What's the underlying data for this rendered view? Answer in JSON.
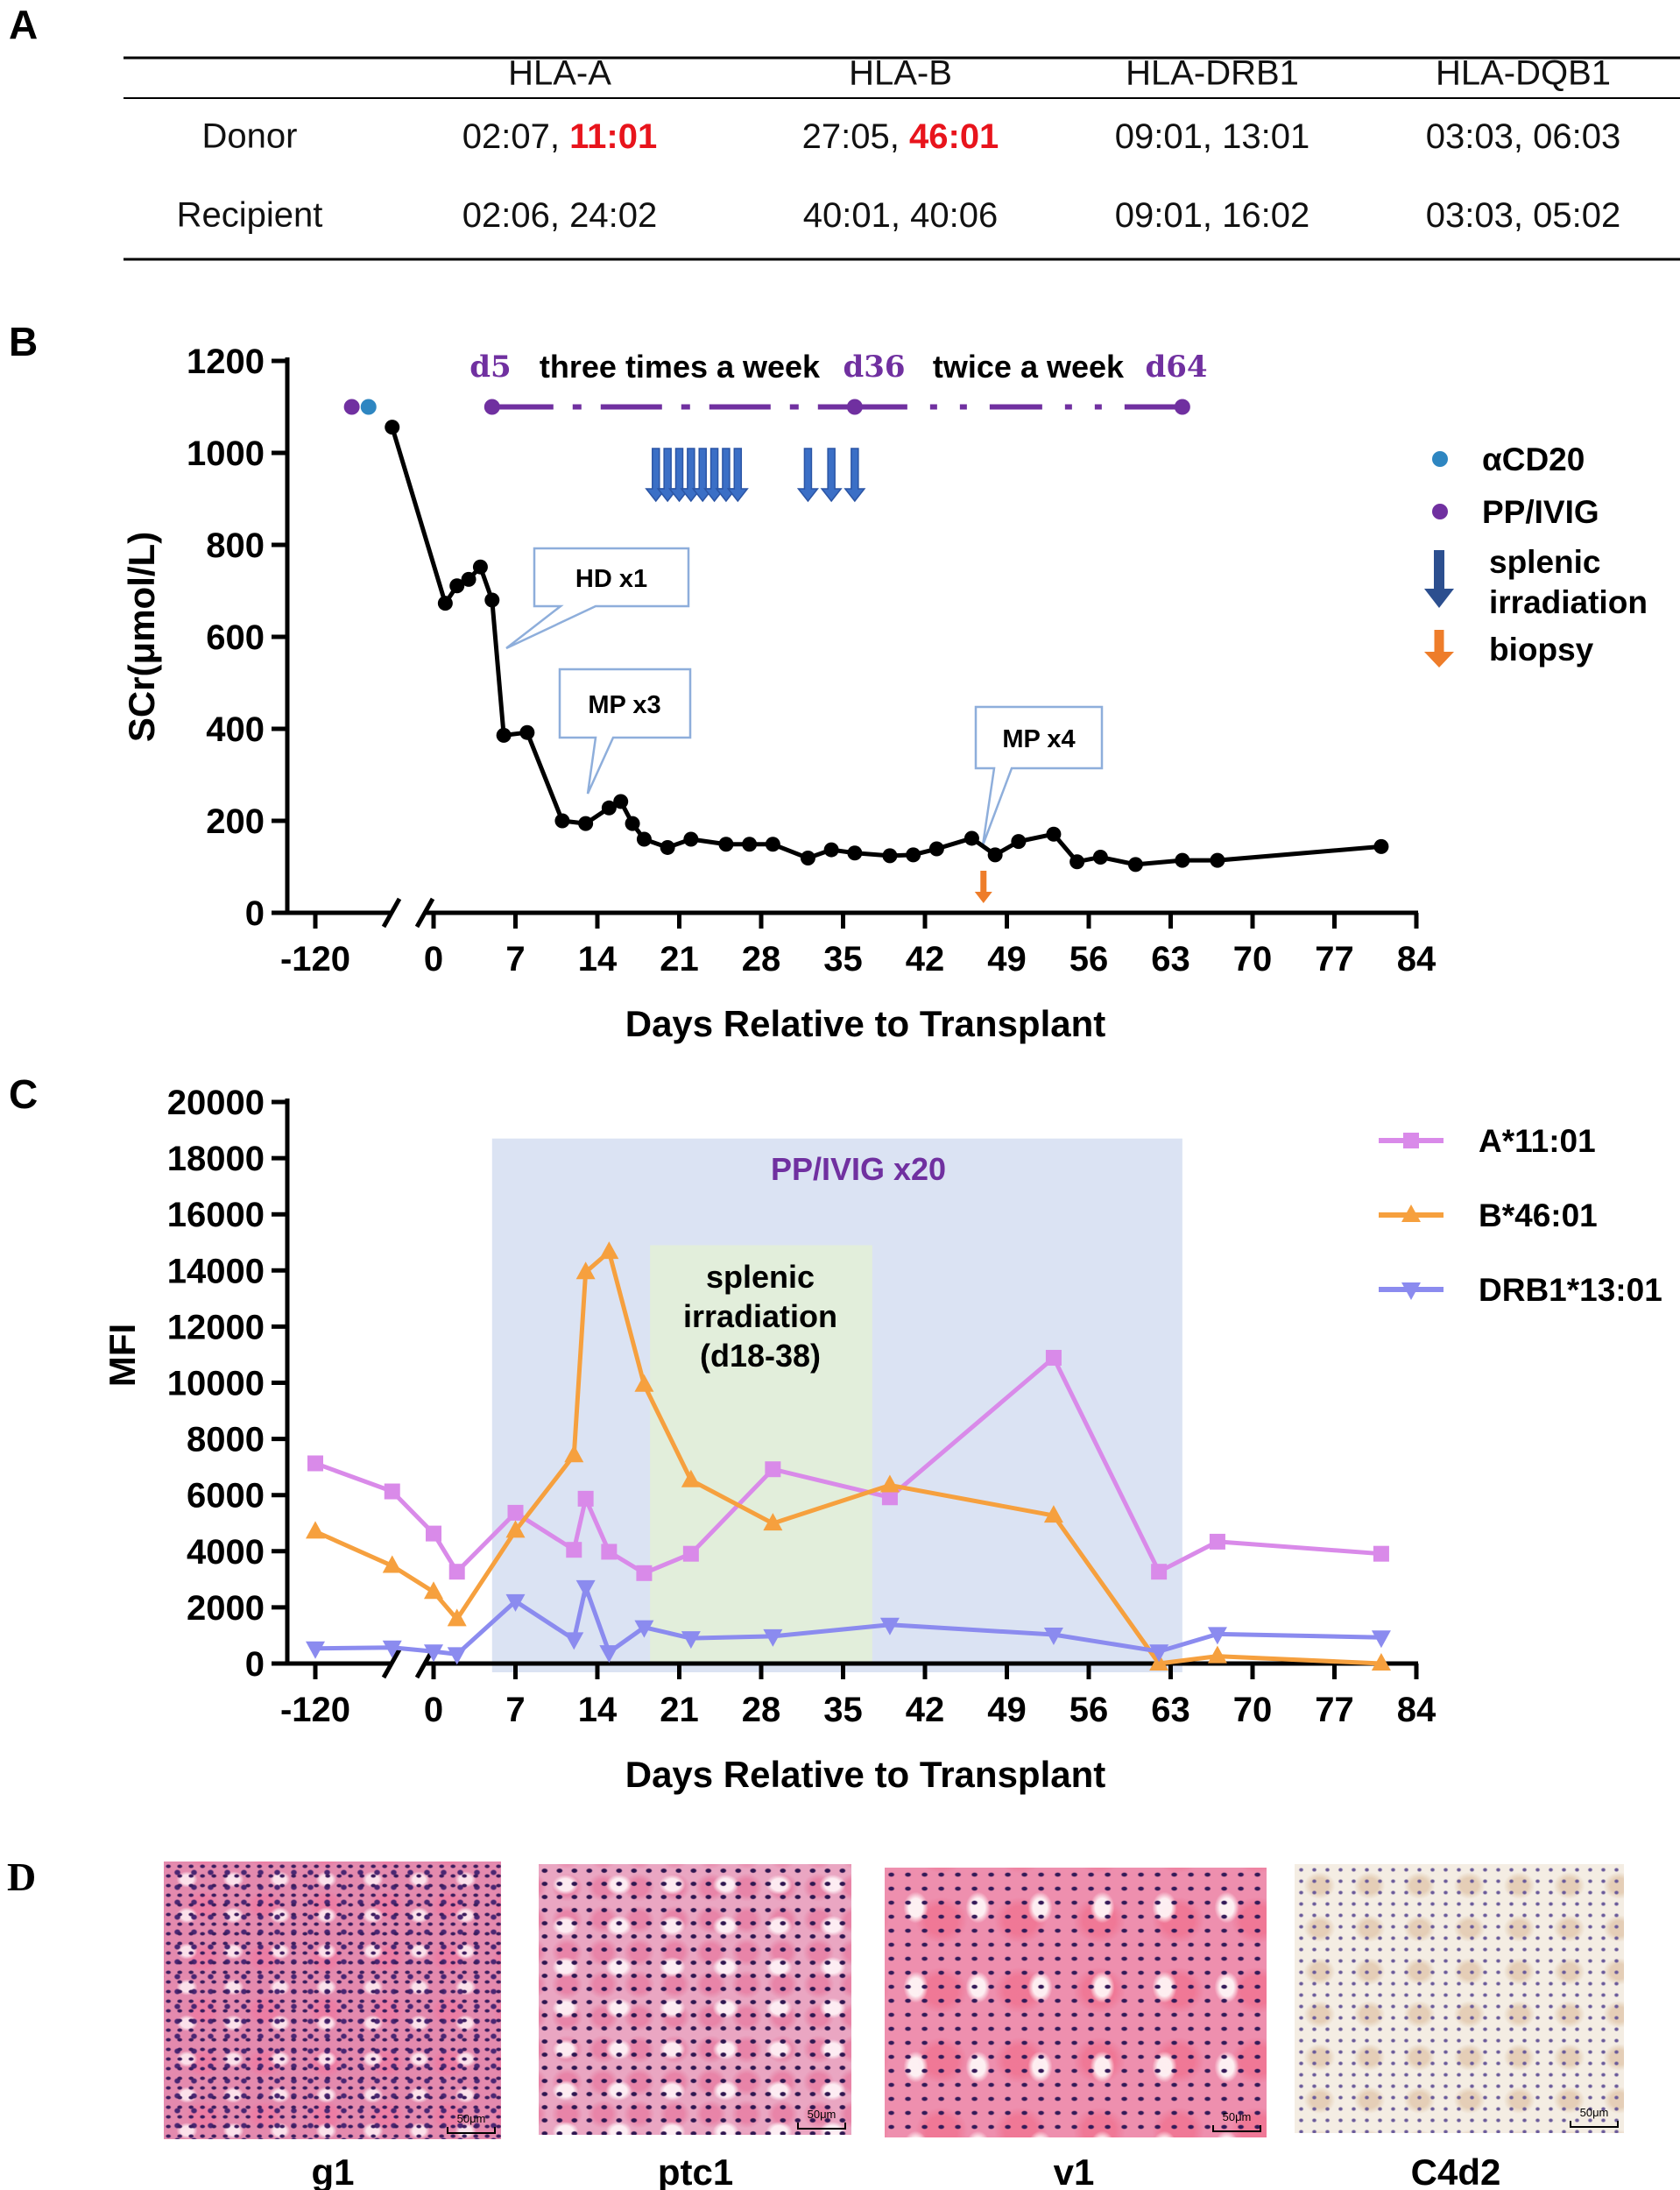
{
  "panel_labels": {
    "a": "A",
    "b": "B",
    "c": "C",
    "d": "D"
  },
  "table": {
    "headers": [
      "HLA-A",
      "HLA-B",
      "HLA-DRB1",
      "HLA-DQB1"
    ],
    "mismatch_color": "#e8141c",
    "rows": [
      {
        "label": "Donor",
        "cells": [
          {
            "plain": "02:07, ",
            "mismatch": "11:01"
          },
          {
            "plain": "27:05, ",
            "mismatch": "46:01"
          },
          {
            "plain": "09:01, 13:01",
            "mismatch": ""
          },
          {
            "plain": "03:03, 06:03",
            "mismatch": ""
          }
        ]
      },
      {
        "label": "Recipient",
        "cells": [
          {
            "plain": "02:06, 24:02",
            "mismatch": ""
          },
          {
            "plain": "40:01, 40:06",
            "mismatch": ""
          },
          {
            "plain": "09:01, 16:02",
            "mismatch": ""
          },
          {
            "plain": "03:03, 05:02",
            "mismatch": ""
          }
        ]
      }
    ]
  },
  "chart_data": [
    {
      "type": "line",
      "title": "",
      "xlabel": "Days Relative to Transplant",
      "ylabel": "SCr(μmol/L)",
      "ylim": [
        0,
        1200
      ],
      "yticks": [
        0,
        200,
        400,
        600,
        800,
        1000,
        1200
      ],
      "xticks": [
        -120,
        0,
        7,
        14,
        21,
        28,
        35,
        42,
        49,
        56,
        63,
        70,
        77,
        84
      ],
      "x_axis_break": "between -120 and 0",
      "grid": false,
      "series": [
        {
          "name": "SCr",
          "color": "#000000",
          "x": [
            -42,
            1,
            2,
            3,
            4,
            5,
            6,
            8,
            11,
            13,
            15,
            16,
            17,
            18,
            20,
            22,
            25,
            27,
            29,
            32,
            34,
            36,
            39,
            41,
            43,
            46,
            48,
            50,
            53,
            55,
            57,
            60,
            64,
            67,
            81
          ],
          "y": [
            1056,
            673,
            711,
            725,
            752,
            680,
            386,
            392,
            200,
            194,
            228,
            242,
            194,
            160,
            142,
            160,
            149,
            149,
            149,
            119,
            137,
            130,
            124,
            126,
            139,
            162,
            126,
            155,
            171,
            111,
            121,
            105,
            114,
            114,
            144
          ]
        }
      ],
      "pre_transplant_dots": [
        {
          "name": "PP/IVIG",
          "x": -83,
          "y": 1100,
          "color": "#7030a0"
        },
        {
          "name": "αCD20",
          "x": -66,
          "y": 1100,
          "color": "#2e86c1"
        }
      ],
      "pp_schedule": {
        "level": 1100,
        "color": "#7030a0",
        "points": [
          5,
          36,
          64
        ],
        "labels": {
          "start": "d5",
          "phase1": "three times a week",
          "mid": "d36",
          "phase2": "twice a week",
          "end": "d64"
        }
      },
      "irradiation_days": [
        19,
        20,
        21,
        22,
        23,
        24,
        25,
        26,
        32,
        34,
        36
      ],
      "irradiation_color": "#3b6fc6",
      "biopsy_day": 47,
      "biopsy_color": "#ee7d2a",
      "callouts": [
        {
          "text": "HD x1",
          "day": 6,
          "value": 600
        },
        {
          "text": "MP x3",
          "day": 14,
          "value": 260
        },
        {
          "text": "MP x4",
          "day": 47,
          "value": 160
        }
      ],
      "legend": {
        "placement": "right",
        "items": [
          {
            "label": "αCD20",
            "marker": "dot",
            "color": "#2e86c1"
          },
          {
            "label": "PP/IVIG",
            "marker": "dot",
            "color": "#7030a0"
          },
          {
            "label": "splenic",
            "label2": "irradiation",
            "marker": "arrow",
            "color": "#2c4f8f"
          },
          {
            "label": "biopsy",
            "marker": "arrow",
            "color": "#ee7d2a"
          }
        ]
      }
    },
    {
      "type": "line",
      "title": "",
      "xlabel": "Days Relative to Transplant",
      "ylabel": "MFI",
      "ylim": [
        0,
        20000
      ],
      "yticks": [
        0,
        2000,
        4000,
        6000,
        8000,
        10000,
        12000,
        14000,
        16000,
        18000,
        20000
      ],
      "xticks": [
        -120,
        0,
        7,
        14,
        21,
        28,
        35,
        42,
        49,
        56,
        63,
        70,
        77,
        84
      ],
      "x_axis_break": "between -120 and 0",
      "grid": false,
      "x": [
        -120,
        -42,
        0,
        2,
        7,
        12,
        13,
        15,
        18,
        22,
        29,
        39,
        53,
        62,
        67,
        81
      ],
      "series": [
        {
          "name": "A*11:01",
          "marker": "square",
          "color": "#d98ae9",
          "values": [
            7130,
            6130,
            4630,
            3270,
            5370,
            4050,
            5870,
            3980,
            3220,
            3910,
            6920,
            5920,
            10890,
            3270,
            4340,
            3910
          ]
        },
        {
          "name": "B*46:01",
          "marker": "triangle-up",
          "color": "#f6a03e",
          "values": [
            4700,
            3480,
            2550,
            1580,
            4730,
            7420,
            13940,
            14660,
            9930,
            6530,
            4990,
            6350,
            5270,
            0,
            260,
            0
          ]
        },
        {
          "name": "DRB1*13:01",
          "marker": "triangle-down",
          "color": "#8b8bef",
          "values": [
            540,
            570,
            430,
            330,
            2220,
            860,
            2720,
            400,
            1290,
            900,
            970,
            1380,
            1030,
            430,
            1050,
            930
          ]
        }
      ],
      "shaded_regions": [
        {
          "label": "PP/IVIG x20",
          "from": 5,
          "to": 64,
          "top": 18700,
          "color": "#dbe3f3",
          "label_color": "#7030a0"
        },
        {
          "lines": [
            "splenic",
            "irradiation",
            "(d18-38)"
          ],
          "from": 18.5,
          "to": 37.5,
          "top": 14900,
          "color": "#e2eedb"
        }
      ],
      "legend": {
        "placement": "right"
      }
    }
  ],
  "histology": [
    {
      "label": "g1",
      "scale": "50μm",
      "stain": "he1"
    },
    {
      "label": "ptc1",
      "scale": "50μm",
      "stain": "he2"
    },
    {
      "label": "v1",
      "scale": "50μm",
      "stain": "he3"
    },
    {
      "label": "C4d2",
      "scale": "50μm",
      "stain": "ihc"
    }
  ]
}
